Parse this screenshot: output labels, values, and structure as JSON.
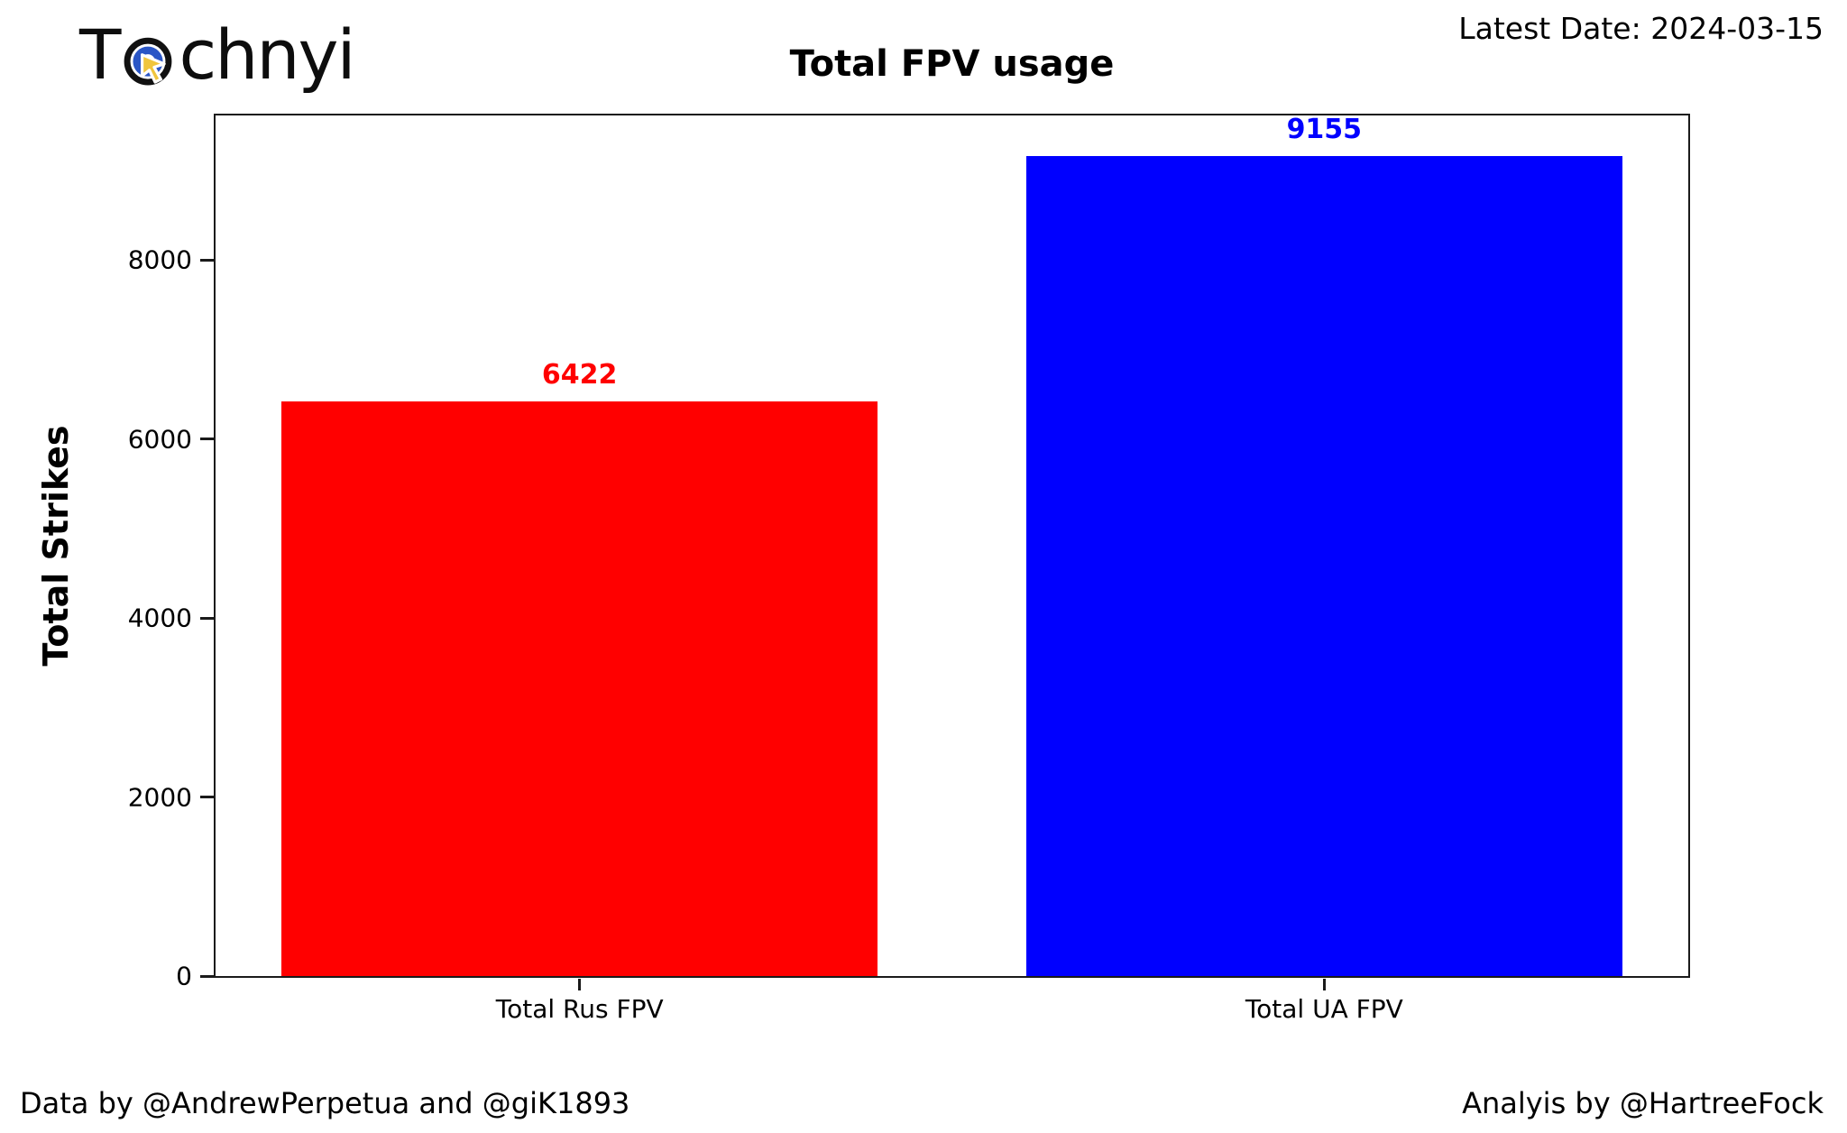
{
  "header": {
    "logo_pre": "T",
    "logo_post": "chnyi",
    "latest_date": "Latest Date: 2024-03-15"
  },
  "brand": {
    "logo_ring_color": "#111111",
    "logo_inner_ring_color": "#2a56c6",
    "logo_cursor_color": "#f0c53d"
  },
  "chart_data": {
    "type": "bar",
    "title": "Total FPV usage",
    "xlabel": "",
    "ylabel": "Total Strikes",
    "categories": [
      "Total Rus FPV",
      "Total UA FPV"
    ],
    "values": [
      6422,
      9155
    ],
    "value_labels": [
      "6422",
      "9155"
    ],
    "bar_colors": [
      "#ff0000",
      "#0000ff"
    ],
    "value_label_colors": [
      "#ff0000",
      "#0000ff"
    ],
    "ylim": [
      0,
      9613
    ],
    "yticks": [
      0,
      2000,
      4000,
      6000,
      8000
    ],
    "grid": false,
    "legend": null,
    "bar_centers_pct": [
      24.72,
      75.28
    ]
  },
  "footer": {
    "left": "Data by @AndrewPerpetua and @giK1893",
    "right": "Analyis by @HartreeFock"
  }
}
